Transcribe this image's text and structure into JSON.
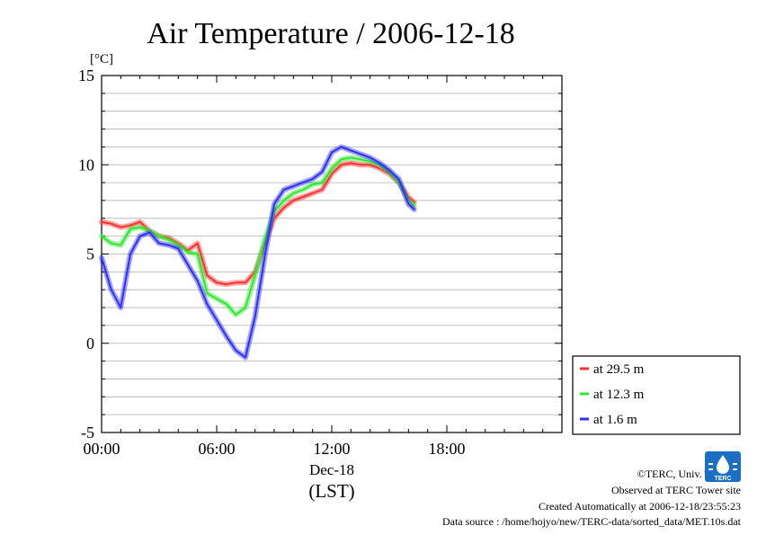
{
  "chart_data": {
    "type": "line",
    "title": "Air Temperature / 2006-12-18",
    "ylabel": "[°C]",
    "xlabel_date": "Dec-18",
    "xlabel_tz": "(LST)",
    "xlim_hours": [
      0,
      24
    ],
    "ylim": [
      -5,
      15
    ],
    "x_ticks": [
      {
        "hour": 0,
        "label": "00:00"
      },
      {
        "hour": 6,
        "label": "06:00"
      },
      {
        "hour": 12,
        "label": "12:00"
      },
      {
        "hour": 18,
        "label": "18:00"
      }
    ],
    "y_ticks": [
      {
        "value": 15,
        "label": "15"
      },
      {
        "value": 10,
        "label": "10"
      },
      {
        "value": 5,
        "label": "5"
      },
      {
        "value": 0,
        "label": "0"
      },
      {
        "value": -5,
        "label": "-5"
      }
    ],
    "grid": true,
    "legend_position": "bottom-right, outside plot",
    "x_hours": [
      0,
      0.5,
      1,
      1.5,
      2,
      2.5,
      3,
      3.5,
      4,
      4.5,
      5,
      5.5,
      6,
      6.5,
      7,
      7.5,
      8,
      8.5,
      9,
      9.5,
      10,
      10.5,
      11,
      11.5,
      12,
      12.5,
      13,
      13.5,
      14,
      14.5,
      15,
      15.5,
      16,
      16.3
    ],
    "series": [
      {
        "name": "at 29.5 m",
        "color": "#ff3030",
        "values": [
          6.8,
          6.7,
          6.5,
          6.6,
          6.8,
          6.3,
          6.0,
          5.9,
          5.6,
          5.2,
          5.6,
          3.8,
          3.4,
          3.3,
          3.4,
          3.4,
          4.0,
          5.5,
          7.0,
          7.6,
          8.0,
          8.2,
          8.4,
          8.6,
          9.5,
          10.0,
          10.1,
          10.0,
          10.0,
          9.8,
          9.5,
          9.0,
          8.2,
          7.9
        ]
      },
      {
        "name": "at 12.3 m",
        "color": "#30e830",
        "values": [
          6.0,
          5.6,
          5.5,
          6.4,
          6.5,
          6.3,
          6.0,
          5.8,
          5.5,
          5.1,
          5.0,
          2.8,
          2.5,
          2.2,
          1.6,
          2.0,
          3.8,
          5.8,
          7.4,
          8.0,
          8.4,
          8.6,
          8.9,
          9.0,
          9.8,
          10.3,
          10.4,
          10.3,
          10.2,
          10.0,
          9.6,
          9.0,
          8.0,
          7.7
        ]
      },
      {
        "name": "at 1.6 m",
        "color": "#3030ff",
        "values": [
          4.8,
          3.0,
          2.0,
          5.0,
          6.0,
          6.2,
          5.6,
          5.5,
          5.3,
          4.4,
          3.5,
          2.2,
          1.3,
          0.4,
          -0.4,
          -0.8,
          1.5,
          4.8,
          7.8,
          8.6,
          8.8,
          9.0,
          9.2,
          9.6,
          10.7,
          11.0,
          10.8,
          10.6,
          10.4,
          10.1,
          9.7,
          9.2,
          7.8,
          7.5
        ]
      }
    ]
  },
  "credits": {
    "copyright": "©TERC, Univ. Tsukuba",
    "observed": "Observed at TERC Tower site",
    "created": "Created Automatically at 2006-12-18/23:55:23",
    "source": "Data source : /home/hojyo/new/TERC-data/sorted_data/MET.10s.dat"
  },
  "logo": {
    "text": "TERC",
    "color": "#1a6fc4"
  }
}
